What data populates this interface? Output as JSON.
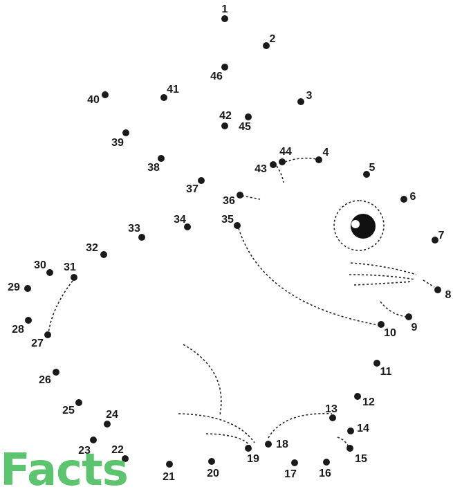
{
  "puzzle": {
    "dot_color": "#1a1a1a",
    "eye_color": "#111111",
    "dots": [
      {
        "n": "1"
      },
      {
        "n": "2"
      },
      {
        "n": "3"
      },
      {
        "n": "4"
      },
      {
        "n": "5"
      },
      {
        "n": "6"
      },
      {
        "n": "7"
      },
      {
        "n": "8"
      },
      {
        "n": "9"
      },
      {
        "n": "10"
      },
      {
        "n": "11"
      },
      {
        "n": "12"
      },
      {
        "n": "13"
      },
      {
        "n": "14"
      },
      {
        "n": "15"
      },
      {
        "n": "16"
      },
      {
        "n": "17"
      },
      {
        "n": "18"
      },
      {
        "n": "19"
      },
      {
        "n": "20"
      },
      {
        "n": "21"
      },
      {
        "n": "22"
      },
      {
        "n": "23"
      },
      {
        "n": "24"
      },
      {
        "n": "25"
      },
      {
        "n": "26"
      },
      {
        "n": "27"
      },
      {
        "n": "28"
      },
      {
        "n": "29"
      },
      {
        "n": "30"
      },
      {
        "n": "31"
      },
      {
        "n": "32"
      },
      {
        "n": "33"
      },
      {
        "n": "34"
      },
      {
        "n": "35"
      },
      {
        "n": "36"
      },
      {
        "n": "37"
      },
      {
        "n": "38"
      },
      {
        "n": "39"
      },
      {
        "n": "40"
      },
      {
        "n": "41"
      },
      {
        "n": "42"
      },
      {
        "n": "43"
      },
      {
        "n": "44"
      },
      {
        "n": "45"
      },
      {
        "n": "46"
      }
    ]
  },
  "brand": {
    "text": "Facts",
    "color": "#5cc46e"
  }
}
